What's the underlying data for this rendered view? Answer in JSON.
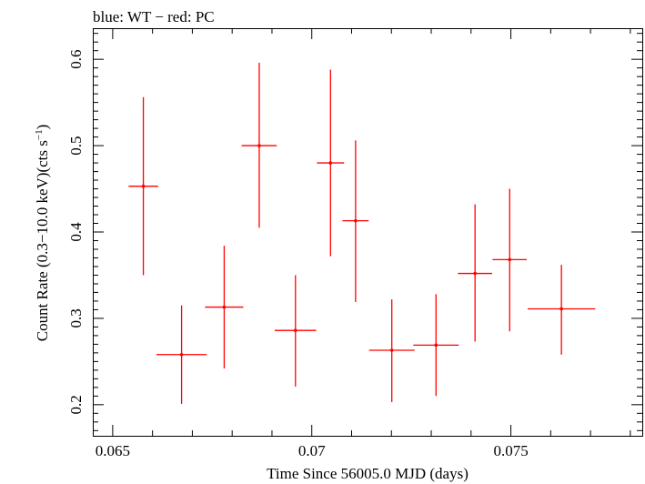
{
  "chart_data": {
    "type": "scatter",
    "title": "blue: WT − red: PC",
    "xlabel": "Time Since 56005.0 MJD (days)",
    "ylabel": "Count Rate (0.3−10.0 keV)(cts s",
    "ylabel_sup": "−1",
    "ylabel_close": ")",
    "xlim": [
      0.0645,
      0.0783
    ],
    "ylim": [
      0.164,
      0.636
    ],
    "x_ticks": [
      0.065,
      0.07,
      0.075
    ],
    "x_tick_labels": [
      "0.065",
      "0.07",
      "0.075"
    ],
    "y_ticks": [
      0.2,
      0.3,
      0.4,
      0.5,
      0.6
    ],
    "y_tick_labels": [
      "0.2",
      "0.3",
      "0.4",
      "0.5",
      "0.6"
    ],
    "grid": false,
    "series": [
      {
        "color": "#ff0000",
        "points": [
          {
            "x": 0.06577,
            "y": 0.453,
            "xerr": 0.00037,
            "ylo": 0.35,
            "yhi": 0.556
          },
          {
            "x": 0.06673,
            "y": 0.258,
            "xerr": 0.00063,
            "ylo": 0.201,
            "yhi": 0.315
          },
          {
            "x": 0.0678,
            "y": 0.313,
            "xerr": 0.00048,
            "ylo": 0.242,
            "yhi": 0.384
          },
          {
            "x": 0.06868,
            "y": 0.5,
            "xerr": 0.00044,
            "ylo": 0.405,
            "yhi": 0.596
          },
          {
            "x": 0.06959,
            "y": 0.286,
            "xerr": 0.00052,
            "ylo": 0.221,
            "yhi": 0.35
          },
          {
            "x": 0.07047,
            "y": 0.48,
            "xerr": 0.00034,
            "ylo": 0.372,
            "yhi": 0.588
          },
          {
            "x": 0.0711,
            "y": 0.413,
            "xerr": 0.00033,
            "ylo": 0.319,
            "yhi": 0.506
          },
          {
            "x": 0.07201,
            "y": 0.263,
            "xerr": 0.00057,
            "ylo": 0.203,
            "yhi": 0.322
          },
          {
            "x": 0.07312,
            "y": 0.269,
            "xerr": 0.00057,
            "ylo": 0.21,
            "yhi": 0.328
          },
          {
            "x": 0.0741,
            "y": 0.352,
            "xerr": 0.00043,
            "ylo": 0.273,
            "yhi": 0.432
          },
          {
            "x": 0.07497,
            "y": 0.368,
            "xerr": 0.00043,
            "ylo": 0.285,
            "yhi": 0.45
          },
          {
            "x": 0.07627,
            "y": 0.311,
            "xerr": 0.00085,
            "ylo": 0.258,
            "yhi": 0.362
          }
        ]
      }
    ]
  }
}
